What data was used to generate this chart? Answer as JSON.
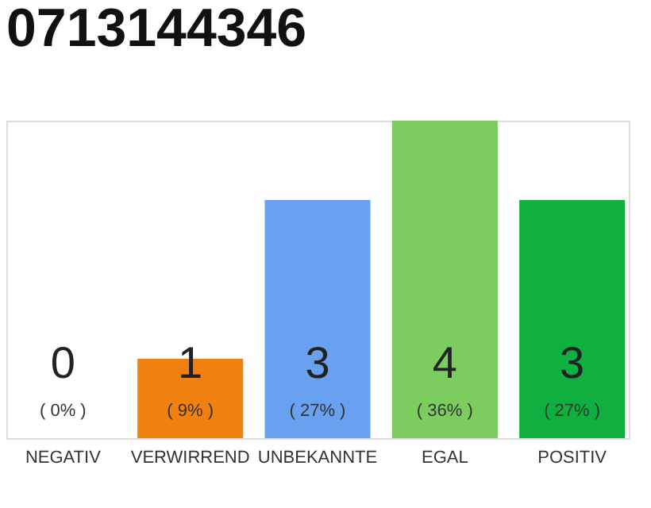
{
  "chart_data": {
    "type": "bar",
    "title": "0713144346",
    "categories": [
      "NEGATIV",
      "VERWIRREND",
      "UNBEKANNTE",
      "EGAL",
      "POSITIV"
    ],
    "values": [
      0,
      1,
      3,
      4,
      3
    ],
    "colors": [
      "#606060",
      "#f08010",
      "#6aa0f0",
      "#7dcc60",
      "#10b040"
    ],
    "data_labels": true,
    "annotations": [
      "( 0% )",
      "( 9% )",
      "( 27% )",
      "( 36% )",
      "( 27% )"
    ],
    "grid": false
  }
}
